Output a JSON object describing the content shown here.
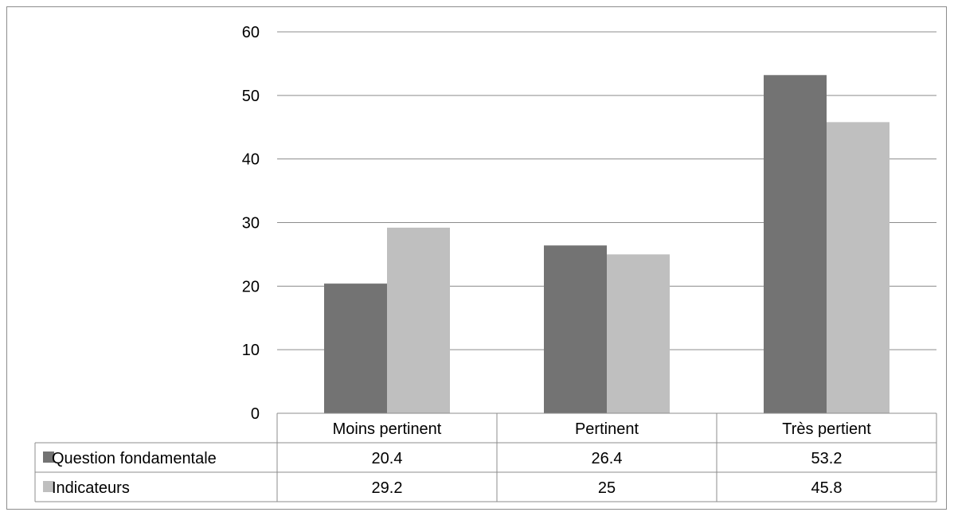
{
  "colors": {
    "question_fondamentale": "#737373",
    "indicateurs": "#bfbfbf",
    "gridline": "#8c8c8c",
    "frame": "#8c8c8c"
  },
  "chart_data": {
    "type": "bar",
    "categories": [
      "Moins pertinent",
      "Pertinent",
      "Très pertient"
    ],
    "series": [
      {
        "name": "Question fondamentale",
        "values": [
          20.4,
          26.4,
          53.2
        ]
      },
      {
        "name": "Indicateurs",
        "values": [
          29.2,
          25,
          45.8
        ]
      }
    ],
    "value_labels": [
      [
        "20.4",
        "26.4",
        "53.2"
      ],
      [
        "29.2",
        "25",
        "45.8"
      ]
    ],
    "yticks": [
      "0",
      "10",
      "20",
      "30",
      "40",
      "50",
      "60"
    ],
    "ylim": [
      0,
      60
    ],
    "grid": true,
    "legend": "data-table-rows",
    "title": "",
    "xlabel": "",
    "ylabel": ""
  }
}
